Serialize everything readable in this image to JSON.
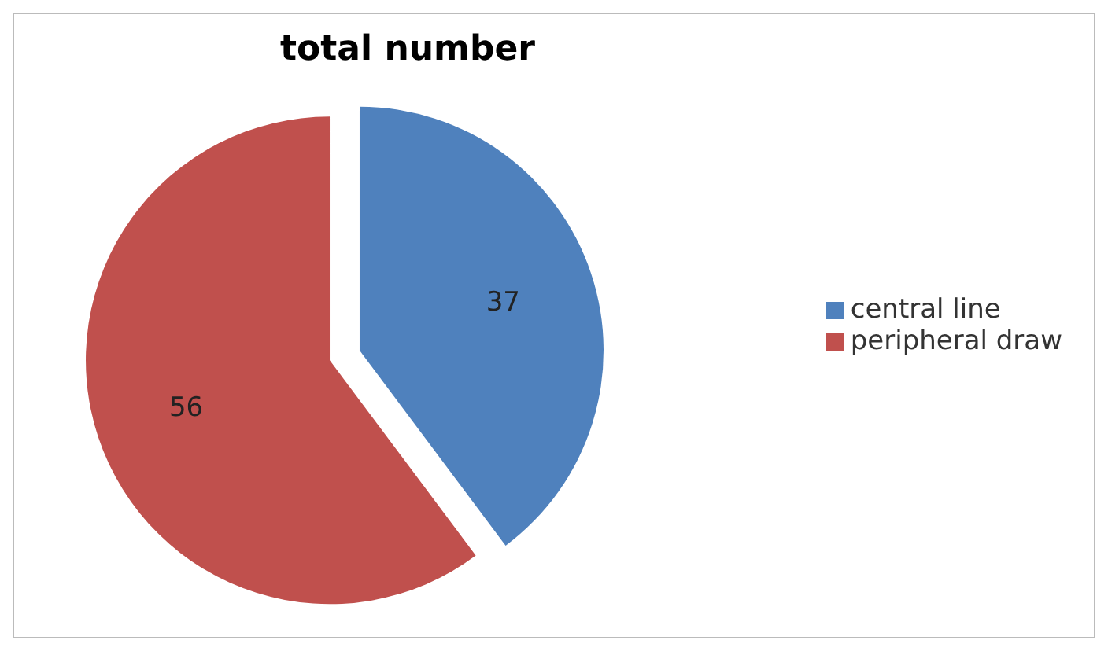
{
  "chart_data": {
    "type": "pie",
    "title": "total number",
    "categories": [
      "central line",
      "peripheral draw"
    ],
    "values": [
      37,
      56
    ],
    "colors": [
      "#4f81bd",
      "#c0504d"
    ],
    "data_labels": true,
    "legend": "right"
  }
}
